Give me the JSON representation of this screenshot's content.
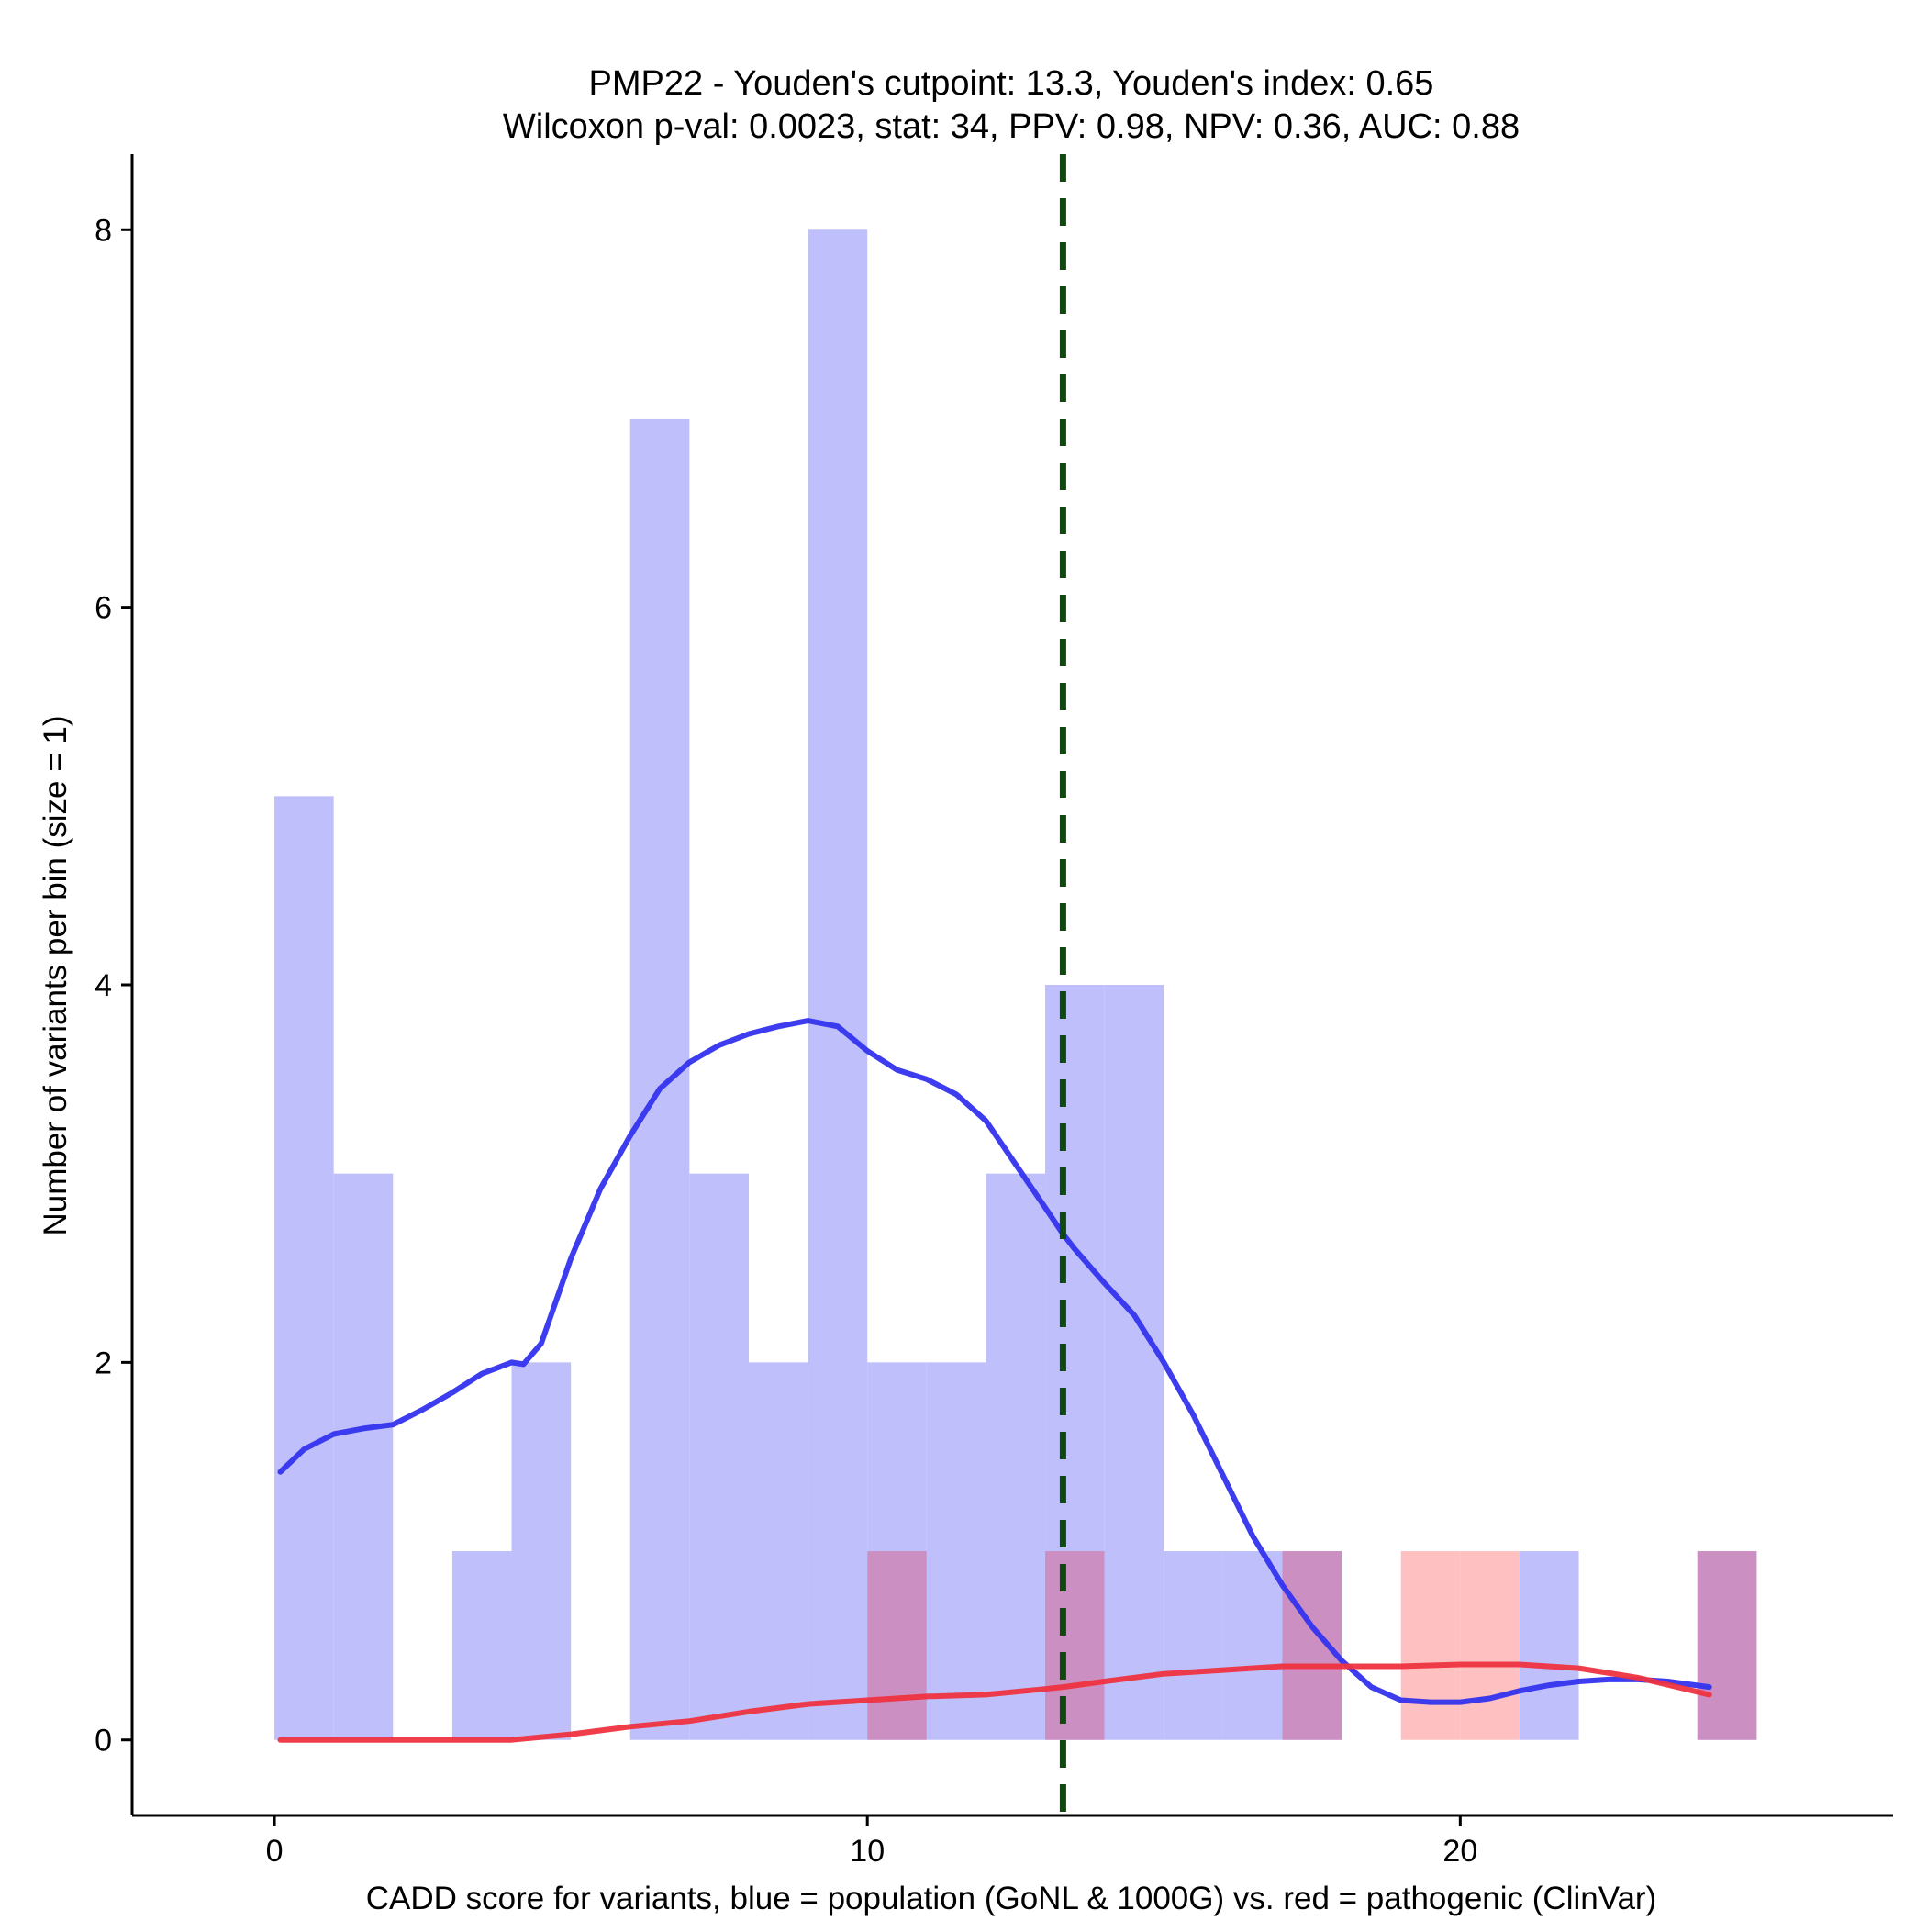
{
  "chart_data": {
    "type": "bar",
    "title": "PMP22 - Youden's cutpoint: 13.3, Youden's index: 0.65",
    "subtitle": "Wilcoxon p-val: 0.0023, stat: 34, PPV: 0.98, NPV: 0.36, AUC: 0.88",
    "xlabel": "CADD score for variants, blue = population (GoNL & 1000G) vs. red = pathogenic (ClinVar)",
    "ylabel": "Number of variants per bin (size = 1)",
    "xlim": [
      -2.4,
      27.3
    ],
    "ylim": [
      -0.4,
      8.4
    ],
    "x_ticks": [
      0,
      10,
      20
    ],
    "y_ticks": [
      0,
      2,
      4,
      6,
      8
    ],
    "bin_width": 1,
    "cutpoint": 13.3,
    "colors": {
      "population": "#bfbffb",
      "pathogenic": "#fec0c0",
      "overlap": "#cc8fc1",
      "population_density": "#3333ee",
      "pathogenic_density": "#ee3340",
      "cutpoint_line": "#0e4a0e"
    },
    "series": [
      {
        "name": "population (GoNL & 1000G)",
        "bin_starts": [
          0,
          1,
          2,
          3,
          4,
          5,
          6,
          7,
          8,
          9,
          10,
          11,
          12,
          13,
          14,
          15,
          16,
          17,
          18,
          19,
          20,
          21,
          22,
          23,
          24
        ],
        "values": [
          5,
          3,
          0,
          1,
          2,
          0,
          7,
          3,
          2,
          8,
          2,
          2,
          3,
          4,
          4,
          1,
          1,
          1,
          0,
          0,
          0,
          1,
          0,
          0,
          1
        ]
      },
      {
        "name": "pathogenic (ClinVar)",
        "bin_starts": [
          0,
          1,
          2,
          3,
          4,
          5,
          6,
          7,
          8,
          9,
          10,
          11,
          12,
          13,
          14,
          15,
          16,
          17,
          18,
          19,
          20,
          21,
          22,
          23,
          24
        ],
        "values": [
          0,
          0,
          0,
          0,
          0,
          0,
          0,
          0,
          0,
          0,
          1,
          0,
          0,
          1,
          0,
          0,
          0,
          1,
          0,
          1,
          1,
          0,
          0,
          0,
          1
        ]
      }
    ],
    "density_curves": [
      {
        "name": "population density",
        "x": [
          0.1,
          0.5,
          1.0,
          1.5,
          2.0,
          2.5,
          3.0,
          3.5,
          4.0,
          4.2,
          4.5,
          5.0,
          5.5,
          6.0,
          6.5,
          7.0,
          7.5,
          8.0,
          8.5,
          9.0,
          9.5,
          10.0,
          10.5,
          11.0,
          11.5,
          12.0,
          12.5,
          13.0,
          13.3,
          13.5,
          14.0,
          14.5,
          15.0,
          15.5,
          16.0,
          16.5,
          17.0,
          17.5,
          18.0,
          18.5,
          19.0,
          19.5,
          20.0,
          20.5,
          21.0,
          21.5,
          22.0,
          22.5,
          23.0,
          23.5,
          24.2
        ],
        "y": [
          1.42,
          1.54,
          1.62,
          1.65,
          1.67,
          1.75,
          1.84,
          1.94,
          2.0,
          1.99,
          2.1,
          2.55,
          2.92,
          3.2,
          3.45,
          3.59,
          3.68,
          3.74,
          3.78,
          3.81,
          3.78,
          3.65,
          3.55,
          3.5,
          3.42,
          3.28,
          3.05,
          2.82,
          2.68,
          2.6,
          2.42,
          2.25,
          2.0,
          1.72,
          1.4,
          1.08,
          0.82,
          0.6,
          0.42,
          0.28,
          0.21,
          0.2,
          0.2,
          0.22,
          0.26,
          0.29,
          0.31,
          0.32,
          0.32,
          0.31,
          0.28
        ]
      },
      {
        "name": "pathogenic density",
        "x": [
          0.1,
          1,
          2,
          3,
          4,
          5,
          6,
          7,
          8,
          9,
          10,
          11,
          12,
          13,
          13.3,
          14,
          15,
          16,
          17,
          18,
          19,
          20,
          21,
          22,
          23,
          24.2
        ],
        "y": [
          0,
          0,
          0,
          0,
          0,
          0.03,
          0.07,
          0.1,
          0.15,
          0.19,
          0.21,
          0.23,
          0.24,
          0.27,
          0.28,
          0.31,
          0.35,
          0.37,
          0.39,
          0.39,
          0.39,
          0.4,
          0.4,
          0.38,
          0.33,
          0.24
        ]
      }
    ]
  }
}
